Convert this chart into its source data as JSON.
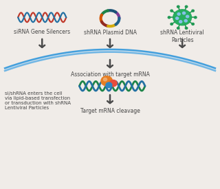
{
  "bg_color": "#f0ece8",
  "labels": {
    "sirna": "siRNA Gene Silencers",
    "shrna_plasmid": "shRNA Plasmid DNA",
    "shrna_lenti": "shRNA Lentiviral\nParticles",
    "association": "Association with target mRNA",
    "cell_entry": "si/shRNA enters the cell\nvia lipid-based transfection\nor transduction with shRNA\nLentiviral Particles",
    "cleavage": "Target mRNA cleavage"
  },
  "arrow_color": "#4a4a4a",
  "arc_color_top": "#4a9ec4",
  "arc_color_bot": "#6ab8d4",
  "text_color": "#444444",
  "font_size": 5.5,
  "cell_text_size": 5.0
}
